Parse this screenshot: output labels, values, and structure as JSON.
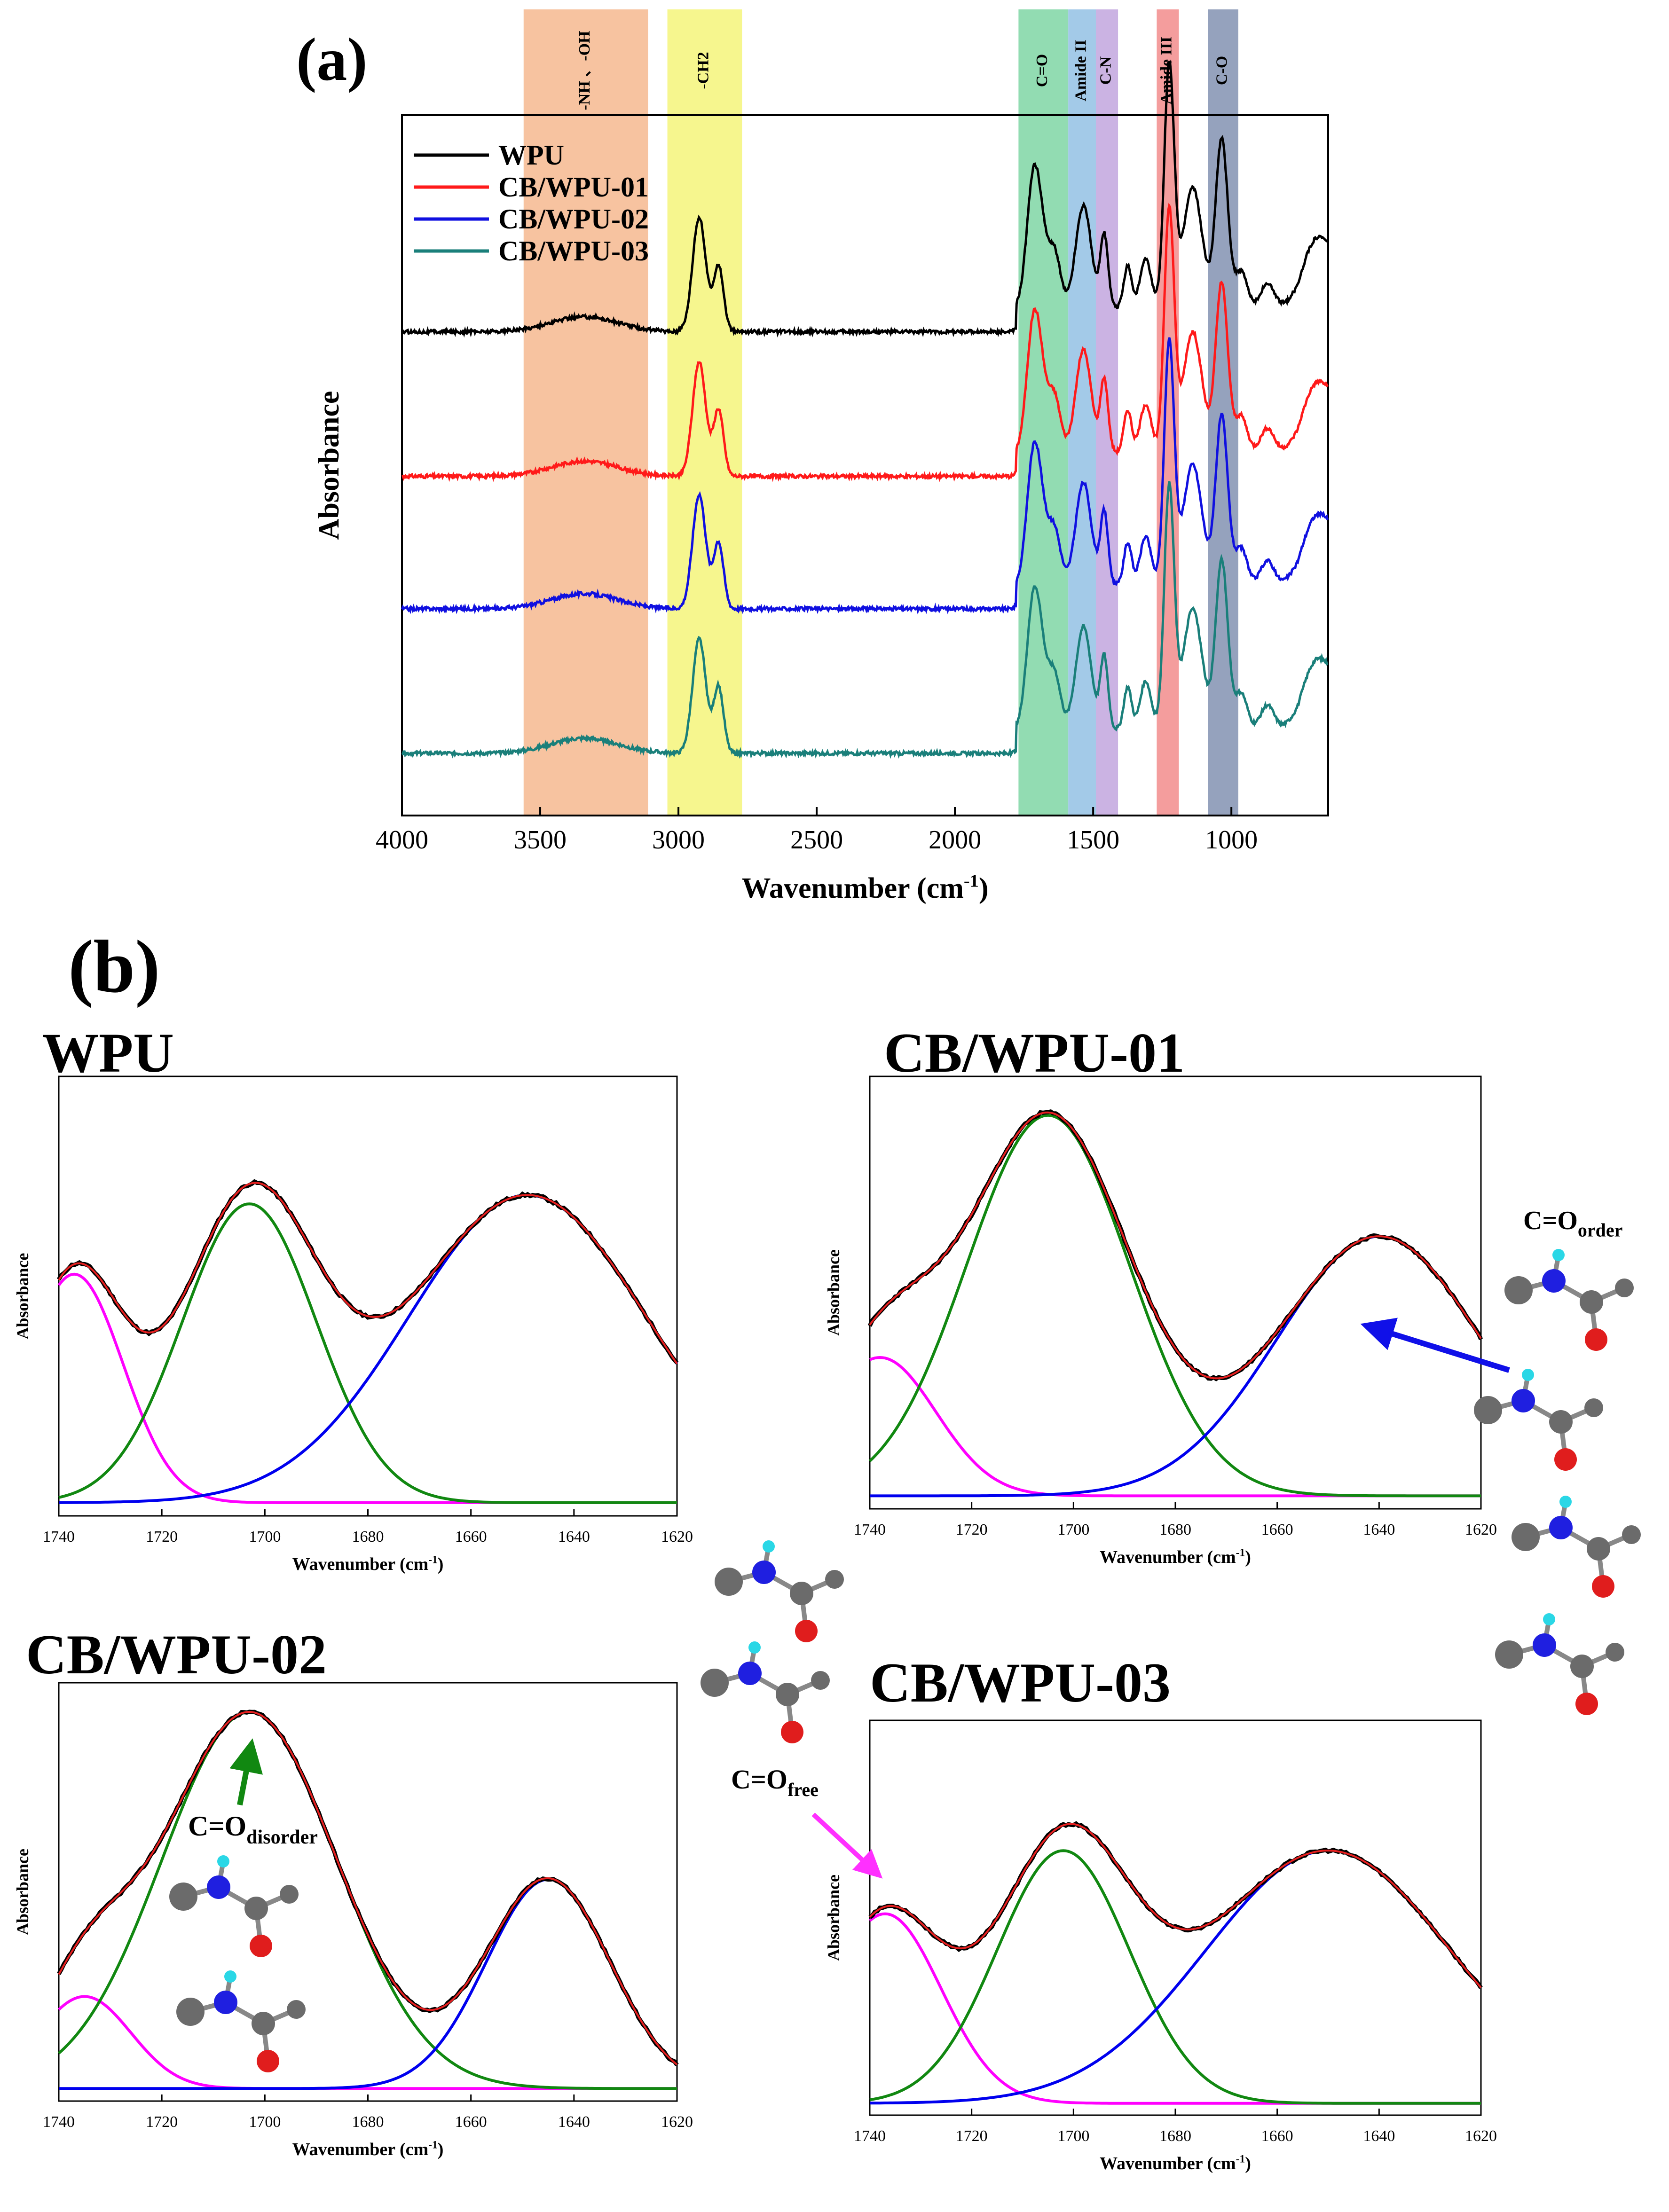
{
  "figure": {
    "label_a": "(a)",
    "label_b": "(b)"
  },
  "chart_data": [
    {
      "id": "ftir",
      "type": "line",
      "title": "",
      "xlabel": "Wavenumber (cm",
      "xlabel_sup": "-1",
      "xlabel_end": ")",
      "ylabel": "Absorbance",
      "xlim": [
        4000,
        650
      ],
      "ylim": [
        0,
        1
      ],
      "x_ticks": [
        4000,
        3500,
        3000,
        2500,
        2000,
        1500,
        1000
      ],
      "bands": [
        {
          "label": "-NH 、-OH",
          "from": 3560,
          "to": 3110,
          "color": "#f6b98f"
        },
        {
          "label": "-CH2",
          "from": 3040,
          "to": 2770,
          "color": "#f5f57a"
        },
        {
          "label": "C=O",
          "from": 1770,
          "to": 1590,
          "color": "#7fd6a5"
        },
        {
          "label": "Amide II",
          "from": 1590,
          "to": 1490,
          "color": "#93c1e4"
        },
        {
          "label": "C-N",
          "from": 1490,
          "to": 1410,
          "color": "#c2a6de"
        },
        {
          "label": "Amide III",
          "from": 1270,
          "to": 1190,
          "color": "#f28c8c"
        },
        {
          "label": "C-O",
          "from": 1085,
          "to": 975,
          "color": "#8292b1"
        }
      ],
      "series": [
        {
          "name": "WPU",
          "color": "#000000",
          "offset": 0.78
        },
        {
          "name": "CB/WPU-01",
          "color": "#ff1a1a",
          "offset": 0.54
        },
        {
          "name": "CB/WPU-02",
          "color": "#1010e0",
          "offset": 0.32
        },
        {
          "name": "CB/WPU-03",
          "color": "#1a7f7a",
          "offset": 0.08
        }
      ],
      "peaks_note": "Peak centers (cm-1) of the curves",
      "peaks": [
        {
          "x": 3340,
          "w": 120,
          "h": 0.025
        },
        {
          "x": 2925,
          "w": 24,
          "h": 0.19
        },
        {
          "x": 2855,
          "w": 18,
          "h": 0.11
        },
        {
          "x": 1725,
          "w": 22,
          "h": 0.1
        },
        {
          "x": 1700,
          "w": 26,
          "h": 0.17
        },
        {
          "x": 1640,
          "w": 22,
          "h": 0.09
        },
        {
          "x": 1535,
          "w": 28,
          "h": 0.17
        },
        {
          "x": 1460,
          "w": 14,
          "h": 0.12
        },
        {
          "x": 1375,
          "w": 14,
          "h": 0.07
        },
        {
          "x": 1310,
          "w": 20,
          "h": 0.08
        },
        {
          "x": 1225,
          "w": 18,
          "h": 0.4
        },
        {
          "x": 1140,
          "w": 34,
          "h": 0.2
        },
        {
          "x": 1035,
          "w": 22,
          "h": 0.28
        },
        {
          "x": 965,
          "w": 22,
          "h": 0.06
        },
        {
          "x": 870,
          "w": 24,
          "h": 0.04
        },
        {
          "x": 700,
          "w": 50,
          "h": 0.08
        }
      ],
      "legend": "top-left"
    },
    {
      "id": "wpu",
      "type": "line",
      "title": "WPU",
      "xlabel": "Wavenumber (cm",
      "xlabel_sup": "-1",
      "xlabel_end": ")",
      "ylabel": "Absorbance",
      "xlim": [
        1740,
        1620
      ],
      "ylim": [
        0,
        1
      ],
      "x_ticks": [
        1740,
        1720,
        1700,
        1680,
        1660,
        1640,
        1620
      ],
      "components": [
        {
          "name": "C=O free",
          "color": "#ff00ff",
          "center": 1737,
          "sigma": 9.5,
          "height": 0.52
        },
        {
          "name": "C=O disorder",
          "color": "#118811",
          "center": 1703,
          "sigma": 13,
          "height": 0.68
        },
        {
          "name": "C=O order",
          "color": "#0000ee",
          "center": 1649,
          "sigma": 23,
          "height": 0.7
        }
      ],
      "fit_color": "#e62020",
      "data_color": "#000000",
      "baseline": 0.03
    },
    {
      "id": "cb01",
      "type": "line",
      "title": "CB/WPU-01",
      "xlabel": "Wavenumber (cm",
      "xlabel_sup": "-1",
      "xlabel_end": ")",
      "ylabel": "Absorbance",
      "xlim": [
        1740,
        1620
      ],
      "ylim": [
        0,
        1
      ],
      "x_ticks": [
        1740,
        1720,
        1700,
        1680,
        1660,
        1640,
        1620
      ],
      "components": [
        {
          "name": "C=O free",
          "color": "#ff00ff",
          "center": 1738,
          "sigma": 11,
          "height": 0.32
        },
        {
          "name": "C=O disorder",
          "color": "#118811",
          "center": 1705,
          "sigma": 16,
          "height": 0.88
        },
        {
          "name": "C=O order",
          "color": "#0000ee",
          "center": 1640,
          "sigma": 20,
          "height": 0.6
        }
      ],
      "fit_color": "#e62020",
      "data_color": "#000000",
      "baseline": 0.03
    },
    {
      "id": "cb02",
      "type": "line",
      "title": "CB/WPU-02",
      "xlabel": "Wavenumber (cm",
      "xlabel_sup": "-1",
      "xlabel_end": ")",
      "ylabel": "Absorbance",
      "xlim": [
        1740,
        1620
      ],
      "ylim": [
        0,
        1
      ],
      "x_ticks": [
        1740,
        1720,
        1700,
        1680,
        1660,
        1640,
        1620
      ],
      "components": [
        {
          "name": "C=O free",
          "color": "#ff00ff",
          "center": 1735,
          "sigma": 9,
          "height": 0.22
        },
        {
          "name": "C=O disorder",
          "color": "#118811",
          "center": 1703,
          "sigma": 17,
          "height": 0.9
        },
        {
          "name": "C=O order",
          "color": "#0000ee",
          "center": 1645,
          "sigma": 12,
          "height": 0.5
        }
      ],
      "fit_color": "#e62020",
      "data_color": "#000000",
      "baseline": 0.03
    },
    {
      "id": "cb03",
      "type": "line",
      "title": "CB/WPU-03",
      "xlabel": "Wavenumber (cm",
      "xlabel_sup": "-1",
      "xlabel_end": ")",
      "ylabel": "Absorbance",
      "xlim": [
        1740,
        1620
      ],
      "ylim": [
        0,
        1
      ],
      "x_ticks": [
        1740,
        1720,
        1700,
        1680,
        1660,
        1640,
        1620
      ],
      "components": [
        {
          "name": "C=O free",
          "color": "#ff00ff",
          "center": 1737,
          "sigma": 11,
          "height": 0.48
        },
        {
          "name": "C=O disorder",
          "color": "#118811",
          "center": 1702,
          "sigma": 13,
          "height": 0.64
        },
        {
          "name": "C=O order",
          "color": "#0000ee",
          "center": 1650,
          "sigma": 24,
          "height": 0.64
        }
      ],
      "fit_color": "#e62020",
      "data_color": "#000000",
      "baseline": 0.03
    }
  ],
  "annotations": {
    "order_label": "C=O",
    "order_sub": "order",
    "disorder_label": "C=O",
    "disorder_sub": "disorder",
    "free_label": "C=O",
    "free_sub": "free"
  },
  "colors": {
    "carbon": "#6b6b6b",
    "nitrogen": "#1f1fe0",
    "oxygen": "#e01d1d",
    "hydrogen": "#2ad7e6",
    "arrow_order": "#1010e8",
    "arrow_disorder": "#118811",
    "arrow_free": "#ff30ff"
  }
}
